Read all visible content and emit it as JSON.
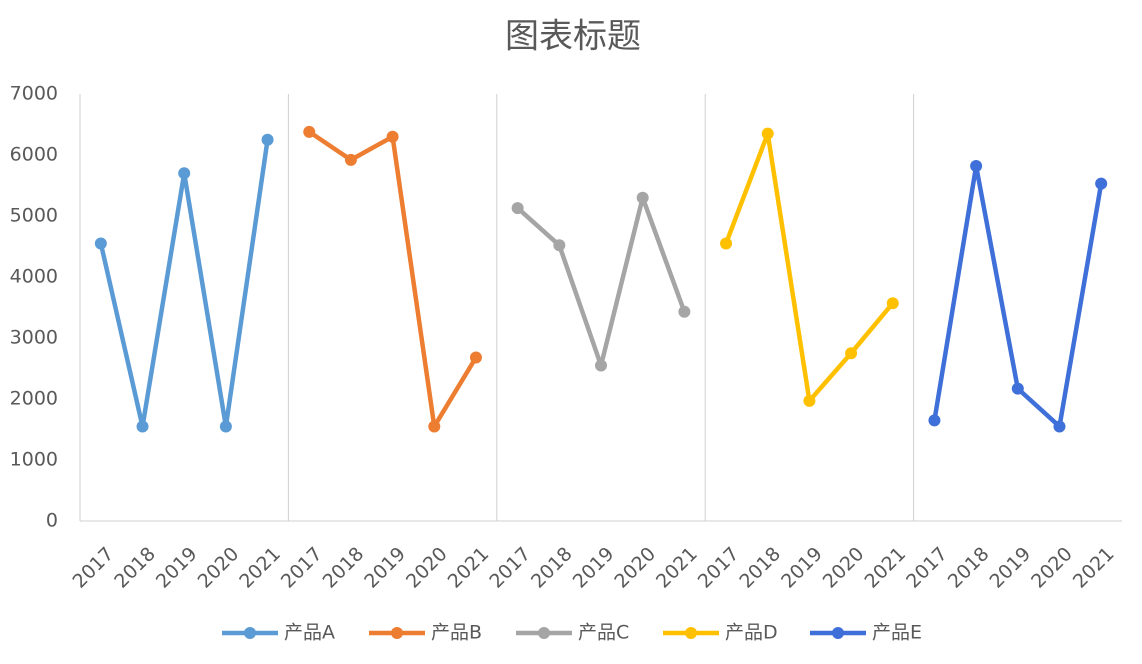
{
  "chart_data": {
    "type": "line",
    "title": "图表标题",
    "categories": [
      "2017",
      "2018",
      "2019",
      "2020",
      "2021",
      "2017",
      "2018",
      "2019",
      "2020",
      "2021",
      "2017",
      "2018",
      "2019",
      "2020",
      "2021",
      "2017",
      "2018",
      "2019",
      "2020",
      "2021",
      "2017",
      "2018",
      "2019",
      "2020",
      "2021"
    ],
    "series": [
      {
        "name": "产品A",
        "color": "#5b9bd5",
        "values": [
          4550,
          1550,
          5700,
          1550,
          6250,
          null,
          null,
          null,
          null,
          null,
          null,
          null,
          null,
          null,
          null,
          null,
          null,
          null,
          null,
          null,
          null,
          null,
          null,
          null,
          null
        ]
      },
      {
        "name": "产品B",
        "color": "#ed7d31",
        "values": [
          null,
          null,
          null,
          null,
          null,
          6380,
          5920,
          6300,
          1550,
          2680,
          null,
          null,
          null,
          null,
          null,
          null,
          null,
          null,
          null,
          null,
          null,
          null,
          null,
          null,
          null
        ]
      },
      {
        "name": "产品C",
        "color": "#a5a5a5",
        "values": [
          null,
          null,
          null,
          null,
          null,
          null,
          null,
          null,
          null,
          null,
          5130,
          4520,
          2550,
          5300,
          3430,
          null,
          null,
          null,
          null,
          null,
          null,
          null,
          null,
          null,
          null
        ]
      },
      {
        "name": "产品D",
        "color": "#ffc000",
        "values": [
          null,
          null,
          null,
          null,
          null,
          null,
          null,
          null,
          null,
          null,
          null,
          null,
          null,
          null,
          null,
          4550,
          6350,
          1970,
          2750,
          3570,
          null,
          null,
          null,
          null,
          null
        ]
      },
      {
        "name": "产品E",
        "color": "#3f6fd8",
        "values": [
          null,
          null,
          null,
          null,
          null,
          null,
          null,
          null,
          null,
          null,
          null,
          null,
          null,
          null,
          null,
          null,
          null,
          null,
          null,
          null,
          1650,
          5820,
          2170,
          1550,
          5530
        ]
      }
    ],
    "ylim": [
      0,
      7000
    ],
    "yticks": [
      0,
      1000,
      2000,
      3000,
      4000,
      5000,
      6000,
      7000
    ],
    "grid": false,
    "legend": "bottom"
  }
}
